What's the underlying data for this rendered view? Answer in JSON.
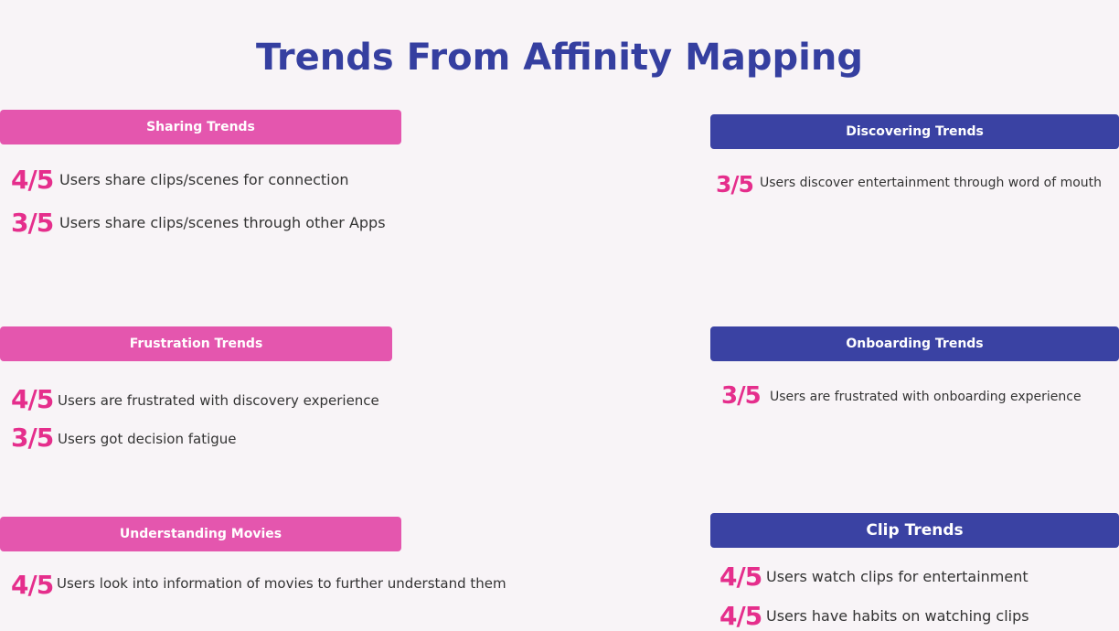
{
  "title": "Trends From Affinity Mapping",
  "colors": {
    "accent_pink": "#e456ae",
    "accent_blue": "#3a42a3",
    "ratio_pink": "#e52e8c",
    "title_blue": "#353fa0",
    "background": "#f8f4f7"
  },
  "sections": {
    "sharing": {
      "heading": "Sharing Trends",
      "items": [
        {
          "ratio": "4/5",
          "text": "Users share clips/scenes for connection"
        },
        {
          "ratio": "3/5",
          "text": "Users  share clips/scenes through other Apps"
        }
      ]
    },
    "discovering": {
      "heading": "Discovering Trends",
      "items": [
        {
          "ratio": "3/5",
          "text": "Users discover entertainment through word of mouth"
        }
      ]
    },
    "frustration": {
      "heading": "Frustration Trends",
      "items": [
        {
          "ratio": "4/5",
          "text": "Users are frustrated with discovery experience"
        },
        {
          "ratio": "3/5",
          "text": "Users got decision fatigue"
        }
      ]
    },
    "onboarding": {
      "heading": "Onboarding Trends",
      "items": [
        {
          "ratio": "3/5",
          "text": "Users are frustrated with onboarding experience"
        }
      ]
    },
    "understanding": {
      "heading": "Understanding Movies",
      "items": [
        {
          "ratio": "4/5",
          "text": "Users look into information of movies to further understand them"
        }
      ]
    },
    "clip": {
      "heading": "Clip Trends",
      "items": [
        {
          "ratio": "4/5",
          "text": "Users watch clips for entertainment"
        },
        {
          "ratio": "4/5",
          "text": "Users have habits on watching clips"
        }
      ]
    }
  }
}
